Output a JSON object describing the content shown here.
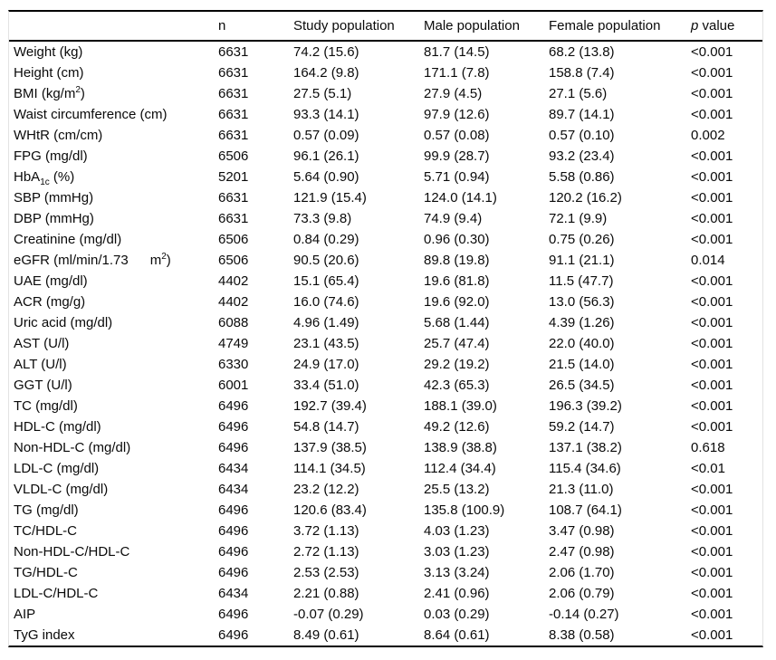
{
  "table": {
    "headers": {
      "variable": "",
      "n": "n",
      "study": "Study population",
      "male": "Male population",
      "female": "Female population",
      "p_italic": "p",
      "p_rest": " value"
    },
    "rows": [
      {
        "label": [
          [
            "Weight (kg)",
            ""
          ]
        ],
        "n": "6631",
        "study": "74.2 (15.6)",
        "male": "81.7 (14.5)",
        "female": "68.2 (13.8)",
        "p": "<0.001"
      },
      {
        "label": [
          [
            "Height (cm)",
            ""
          ]
        ],
        "n": "6631",
        "study": "164.2 (9.8)",
        "male": "171.1 (7.8)",
        "female": "158.8 (7.4)",
        "p": "<0.001"
      },
      {
        "label": [
          [
            "BMI (kg/m",
            ""
          ],
          [
            "2",
            "sup"
          ],
          [
            ")",
            ""
          ]
        ],
        "n": "6631",
        "study": "27.5 (5.1)",
        "male": "27.9 (4.5)",
        "female": "27.1 (5.6)",
        "p": "<0.001"
      },
      {
        "label": [
          [
            "Waist circumference (cm)",
            ""
          ]
        ],
        "n": "6631",
        "study": "93.3 (14.1)",
        "male": "97.9 (12.6)",
        "female": "89.7 (14.1)",
        "p": "<0.001"
      },
      {
        "label": [
          [
            "WHtR (cm/cm)",
            ""
          ]
        ],
        "n": "6631",
        "study": "0.57 (0.09)",
        "male": "0.57 (0.08)",
        "female": "0.57 (0.10)",
        "p": "0.002"
      },
      {
        "label": [
          [
            "FPG (mg/dl)",
            ""
          ]
        ],
        "n": "6506",
        "study": "96.1 (26.1)",
        "male": "99.9 (28.7)",
        "female": "93.2 (23.4)",
        "p": "<0.001"
      },
      {
        "label": [
          [
            "HbA",
            ""
          ],
          [
            "1c",
            "sub"
          ],
          [
            " (%)",
            ""
          ]
        ],
        "n": "5201",
        "study": "5.64 (0.90)",
        "male": "5.71 (0.94)",
        "female": "5.58 (0.86)",
        "p": "<0.001"
      },
      {
        "label": [
          [
            "SBP (mmHg)",
            ""
          ]
        ],
        "n": "6631",
        "study": "121.9 (15.4)",
        "male": "124.0 (14.1)",
        "female": "120.2 (16.2)",
        "p": "<0.001"
      },
      {
        "label": [
          [
            "DBP (mmHg)",
            ""
          ]
        ],
        "n": "6631",
        "study": "73.3 (9.8)",
        "male": "74.9 (9.4)",
        "female": "72.1 (9.9)",
        "p": "<0.001"
      },
      {
        "label": [
          [
            "Creatinine (mg/dl)",
            ""
          ]
        ],
        "n": "6506",
        "study": "0.84 (0.29)",
        "male": "0.96 (0.30)",
        "female": "0.75 (0.26)",
        "p": "<0.001"
      },
      {
        "label": [
          [
            "eGFR (ml/min/1.73",
            ""
          ],
          [
            "m",
            "gap"
          ],
          [
            "2",
            "sup"
          ],
          [
            ")",
            ""
          ]
        ],
        "n": "6506",
        "study": "90.5 (20.6)",
        "male": "89.8 (19.8)",
        "female": "91.1 (21.1)",
        "p": "0.014"
      },
      {
        "label": [
          [
            "UAE (mg/dl)",
            ""
          ]
        ],
        "n": "4402",
        "study": "15.1 (65.4)",
        "male": "19.6 (81.8)",
        "female": "11.5 (47.7)",
        "p": "<0.001"
      },
      {
        "label": [
          [
            "ACR (mg/g)",
            ""
          ]
        ],
        "n": "4402",
        "study": "16.0 (74.6)",
        "male": "19.6 (92.0)",
        "female": "13.0 (56.3)",
        "p": "<0.001"
      },
      {
        "label": [
          [
            "Uric acid (mg/dl)",
            ""
          ]
        ],
        "n": "6088",
        "study": "4.96 (1.49)",
        "male": "5.68 (1.44)",
        "female": "4.39 (1.26)",
        "p": "<0.001"
      },
      {
        "label": [
          [
            "AST (U/l)",
            ""
          ]
        ],
        "n": "4749",
        "study": "23.1 (43.5)",
        "male": "25.7 (47.4)",
        "female": "22.0 (40.0)",
        "p": "<0.001"
      },
      {
        "label": [
          [
            "ALT (U/l)",
            ""
          ]
        ],
        "n": "6330",
        "study": "24.9 (17.0)",
        "male": "29.2 (19.2)",
        "female": "21.5 (14.0)",
        "p": "<0.001"
      },
      {
        "label": [
          [
            "GGT (U/l)",
            ""
          ]
        ],
        "n": "6001",
        "study": "33.4 (51.0)",
        "male": "42.3 (65.3)",
        "female": "26.5 (34.5)",
        "p": "<0.001"
      },
      {
        "label": [
          [
            "TC (mg/dl)",
            ""
          ]
        ],
        "n": "6496",
        "study": "192.7 (39.4)",
        "male": "188.1 (39.0)",
        "female": "196.3 (39.2)",
        "p": "<0.001"
      },
      {
        "label": [
          [
            "HDL-C (mg/dl)",
            ""
          ]
        ],
        "n": "6496",
        "study": "54.8 (14.7)",
        "male": "49.2 (12.6)",
        "female": "59.2 (14.7)",
        "p": "<0.001"
      },
      {
        "label": [
          [
            "Non-HDL-C (mg/dl)",
            ""
          ]
        ],
        "n": "6496",
        "study": "137.9 (38.5)",
        "male": "138.9 (38.8)",
        "female": "137.1 (38.2)",
        "p": "0.618"
      },
      {
        "label": [
          [
            "LDL-C (mg/dl)",
            ""
          ]
        ],
        "n": "6434",
        "study": "114.1 (34.5)",
        "male": "112.4 (34.4)",
        "female": "115.4 (34.6)",
        "p": "<0.01"
      },
      {
        "label": [
          [
            "VLDL-C (mg/dl)",
            ""
          ]
        ],
        "n": "6434",
        "study": "23.2 (12.2)",
        "male": "25.5 (13.2)",
        "female": "21.3 (11.0)",
        "p": "<0.001"
      },
      {
        "label": [
          [
            "TG (mg/dl)",
            ""
          ]
        ],
        "n": "6496",
        "study": "120.6 (83.4)",
        "male": "135.8 (100.9)",
        "female": "108.7 (64.1)",
        "p": "<0.001"
      },
      {
        "label": [
          [
            "TC/HDL-C",
            ""
          ]
        ],
        "n": "6496",
        "study": "3.72 (1.13)",
        "male": "4.03 (1.23)",
        "female": "3.47 (0.98)",
        "p": "<0.001"
      },
      {
        "label": [
          [
            "Non-HDL-C/HDL-C",
            ""
          ]
        ],
        "n": "6496",
        "study": "2.72 (1.13)",
        "male": "3.03 (1.23)",
        "female": "2.47 (0.98)",
        "p": "<0.001"
      },
      {
        "label": [
          [
            "TG/HDL-C",
            ""
          ]
        ],
        "n": "6496",
        "study": "2.53 (2.53)",
        "male": "3.13 (3.24)",
        "female": "2.06 (1.70)",
        "p": "<0.001"
      },
      {
        "label": [
          [
            "LDL-C/HDL-C",
            ""
          ]
        ],
        "n": "6434",
        "study": "2.21 (0.88)",
        "male": "2.41 (0.96)",
        "female": "2.06 (0.79)",
        "p": "<0.001"
      },
      {
        "label": [
          [
            "AIP",
            ""
          ]
        ],
        "n": "6496",
        "study": "-0.07 (0.29)",
        "male": "0.03 (0.29)",
        "female": "-0.14 (0.27)",
        "p": "<0.001"
      },
      {
        "label": [
          [
            "TyG index",
            ""
          ]
        ],
        "n": "6496",
        "study": "8.49 (0.61)",
        "male": "8.64 (0.61)",
        "female": "8.38 (0.58)",
        "p": "<0.001"
      }
    ]
  }
}
